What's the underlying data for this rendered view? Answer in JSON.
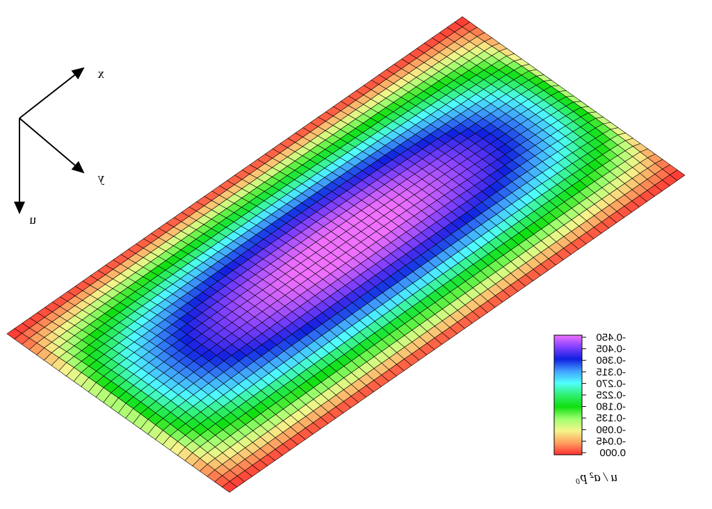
{
  "chart_data": {
    "type": "surface",
    "title": "",
    "axes": {
      "x": "x",
      "y": "y",
      "z": "u"
    },
    "colorbar": {
      "label": "u / a² p₀",
      "ticks": [
        "-0.450",
        "-0.405",
        "-0.360",
        "-0.315",
        "-0.270",
        "-0.225",
        "-0.180",
        "-0.135",
        "-0.090",
        "-0.045",
        "0.000"
      ],
      "range": [
        -0.45,
        0.0
      ],
      "colors": [
        "#ff3030",
        "#ffa060",
        "#f5f58c",
        "#a0ff70",
        "#10e010",
        "#30f070",
        "#50ffff",
        "#40a0ff",
        "#1020e0",
        "#8040ff",
        "#f070ff"
      ]
    },
    "surface": {
      "aspect_ratio": 2,
      "min_value": -0.45,
      "boundary_value": 0.0,
      "grid": [
        60,
        30
      ]
    },
    "grid": true
  },
  "colors": {
    "background": "#ffffff",
    "mesh": "#000000"
  }
}
